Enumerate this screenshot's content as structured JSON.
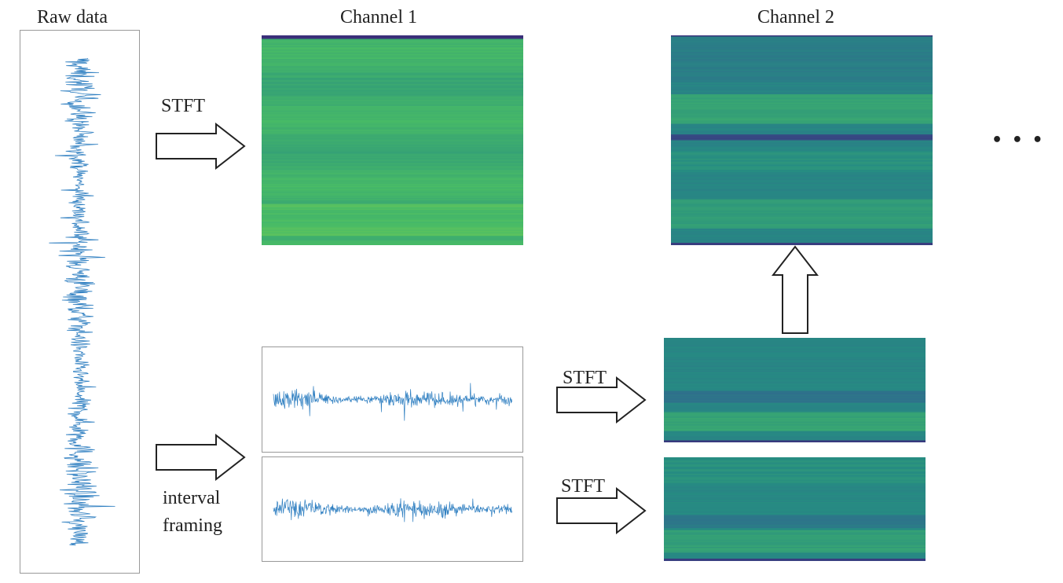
{
  "labels": {
    "raw_data": "Raw data",
    "channel1": "Channel 1",
    "channel2": "Channel 2",
    "stft_top": "STFT",
    "stft_frame1": "STFT",
    "stft_frame2": "STFT",
    "interval": "interval",
    "framing": "framing",
    "ellipsis": "• • •"
  },
  "colors": {
    "signal": "#2f7fc1",
    "arrow_stroke": "#222222",
    "viridis_dark": "#3b2f7a",
    "viridis_teal": "#2a8a8a",
    "viridis_green": "#4fc06a",
    "viridis_yellow": "#9ad84a"
  },
  "icons": {
    "right_arrow": "hollow-right-arrow-icon",
    "up_arrow": "hollow-up-arrow-icon"
  }
}
